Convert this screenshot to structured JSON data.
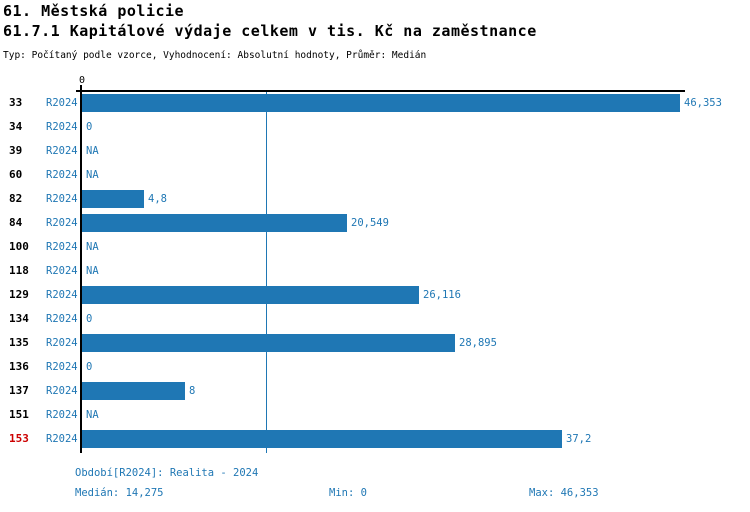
{
  "header": {
    "title": "61. Městská policie",
    "subtitle": "61.7.1 Kapitálové výdaje celkem v tis. Kč na zaměstnance",
    "meta": "Typ: Počítaný podle vzorce, Vyhodnocení: Absolutní hodnoty, Průměr: Medián"
  },
  "chart_data": {
    "type": "bar",
    "orientation": "horizontal",
    "title": "61.7.1 Kapitálové výdaje celkem v tis. Kč na zaměstnance",
    "series_label": "R2024",
    "axis_zero_label": "0",
    "categories": [
      "33",
      "34",
      "39",
      "60",
      "82",
      "84",
      "100",
      "118",
      "129",
      "134",
      "135",
      "136",
      "137",
      "151",
      "153"
    ],
    "values": [
      46.353,
      0,
      null,
      null,
      4.8,
      20.549,
      null,
      null,
      26.116,
      0,
      28.895,
      0,
      8,
      null,
      37.2
    ],
    "value_labels": [
      "46,353",
      "0",
      "NA",
      "NA",
      "4,8",
      "20,549",
      "NA",
      "NA",
      "26,116",
      "0",
      "28,895",
      "0",
      "8",
      "NA",
      "37,2"
    ],
    "highlighted_category": "153",
    "xlim": [
      0,
      46.353
    ],
    "median": 14.275,
    "median_label": "14,275",
    "min": 0,
    "max": 46.353,
    "grid": false,
    "legend_position": "none"
  },
  "footer": {
    "period": "Období[R2024]: Realita - 2024",
    "median": "Medián: 14,275",
    "min": "Min: 0",
    "max": "Max: 46,353"
  },
  "colors": {
    "bar": "#1f77b4",
    "blue_text": "#1f77b4",
    "highlight_red": "#cc0000",
    "axis": "#000000",
    "background": "#ffffff"
  }
}
